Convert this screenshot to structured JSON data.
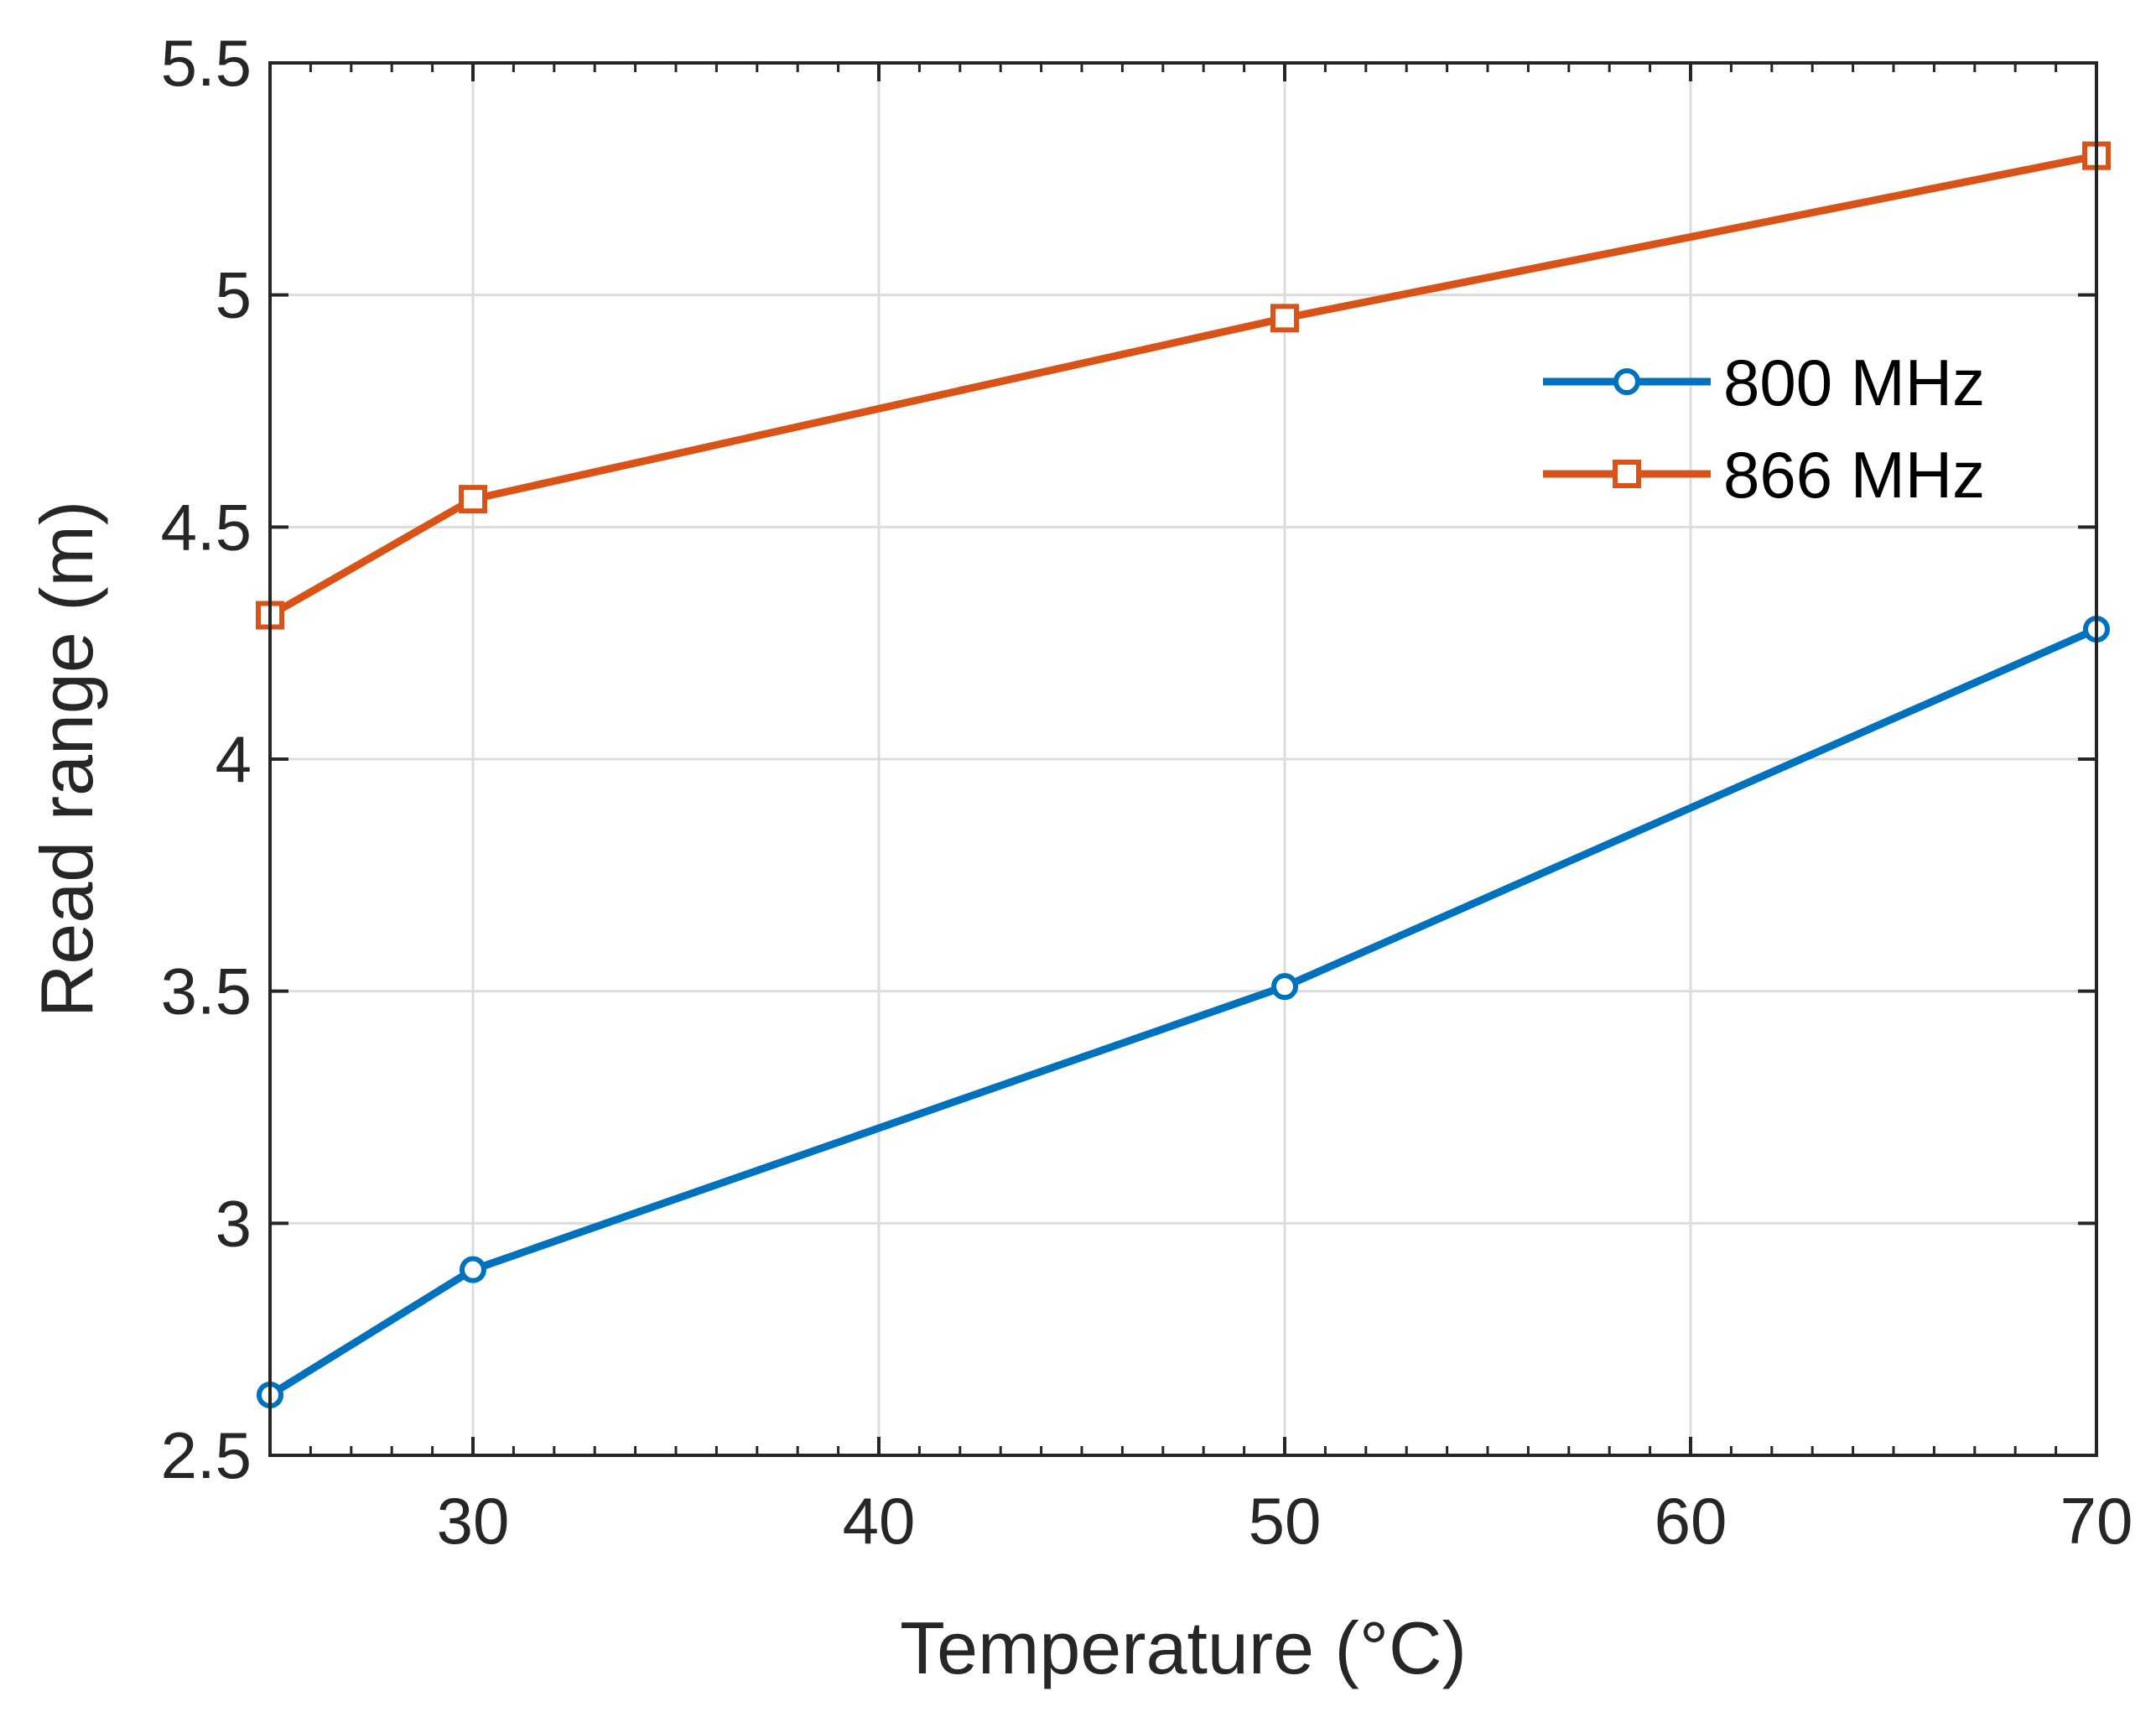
{
  "chart_data": {
    "type": "line",
    "title": "",
    "xlabel": "Temperature (°C)",
    "ylabel": "Read range (m)",
    "xlim": [
      25,
      70
    ],
    "ylim": [
      2.5,
      5.5
    ],
    "xticks": [
      30,
      40,
      50,
      60,
      70
    ],
    "xtick_labels": [
      "30",
      "40",
      "50",
      "60",
      "70"
    ],
    "yticks": [
      2.5,
      3,
      3.5,
      4,
      4.5,
      5,
      5.5
    ],
    "ytick_labels": [
      "2.5",
      "3",
      "3.5",
      "4",
      "4.5",
      "5",
      "5.5"
    ],
    "x_minor_step": 2,
    "grid": true,
    "legend_position": "top-right",
    "x": [
      25,
      30,
      50,
      70
    ],
    "series": [
      {
        "name": "800 MHz",
        "values": [
          2.63,
          2.9,
          3.51,
          4.28
        ],
        "color": "#0072BD",
        "marker": "circle"
      },
      {
        "name": "866 MHz",
        "values": [
          4.31,
          4.56,
          4.95,
          5.3
        ],
        "color": "#D95319",
        "marker": "square"
      }
    ]
  }
}
